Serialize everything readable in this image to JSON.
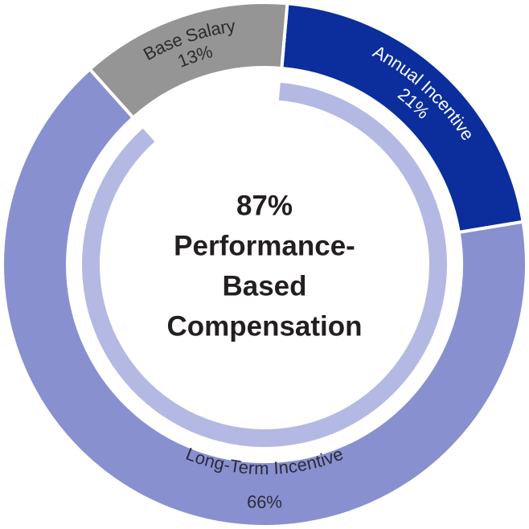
{
  "chart_data": {
    "type": "donut",
    "series": [
      {
        "name": "Annual Incentive",
        "color": "#0b2e9c",
        "label_color": "#ffffff"
      },
      {
        "name": "Long-Term Incentive",
        "color": "#8890cf",
        "label_color": "#2b2b3a"
      },
      {
        "name": "Base Salary",
        "color": "#959595",
        "label_color": "#2b2b2b"
      }
    ],
    "values": [
      21,
      66,
      13
    ],
    "value_labels": [
      "21%",
      "66%",
      "13%"
    ],
    "inner_ring": {
      "value": 87,
      "value_label": "87%",
      "color": "#b4b9e3"
    },
    "center_text": [
      "Performance-",
      "Based",
      "Compensation"
    ]
  }
}
